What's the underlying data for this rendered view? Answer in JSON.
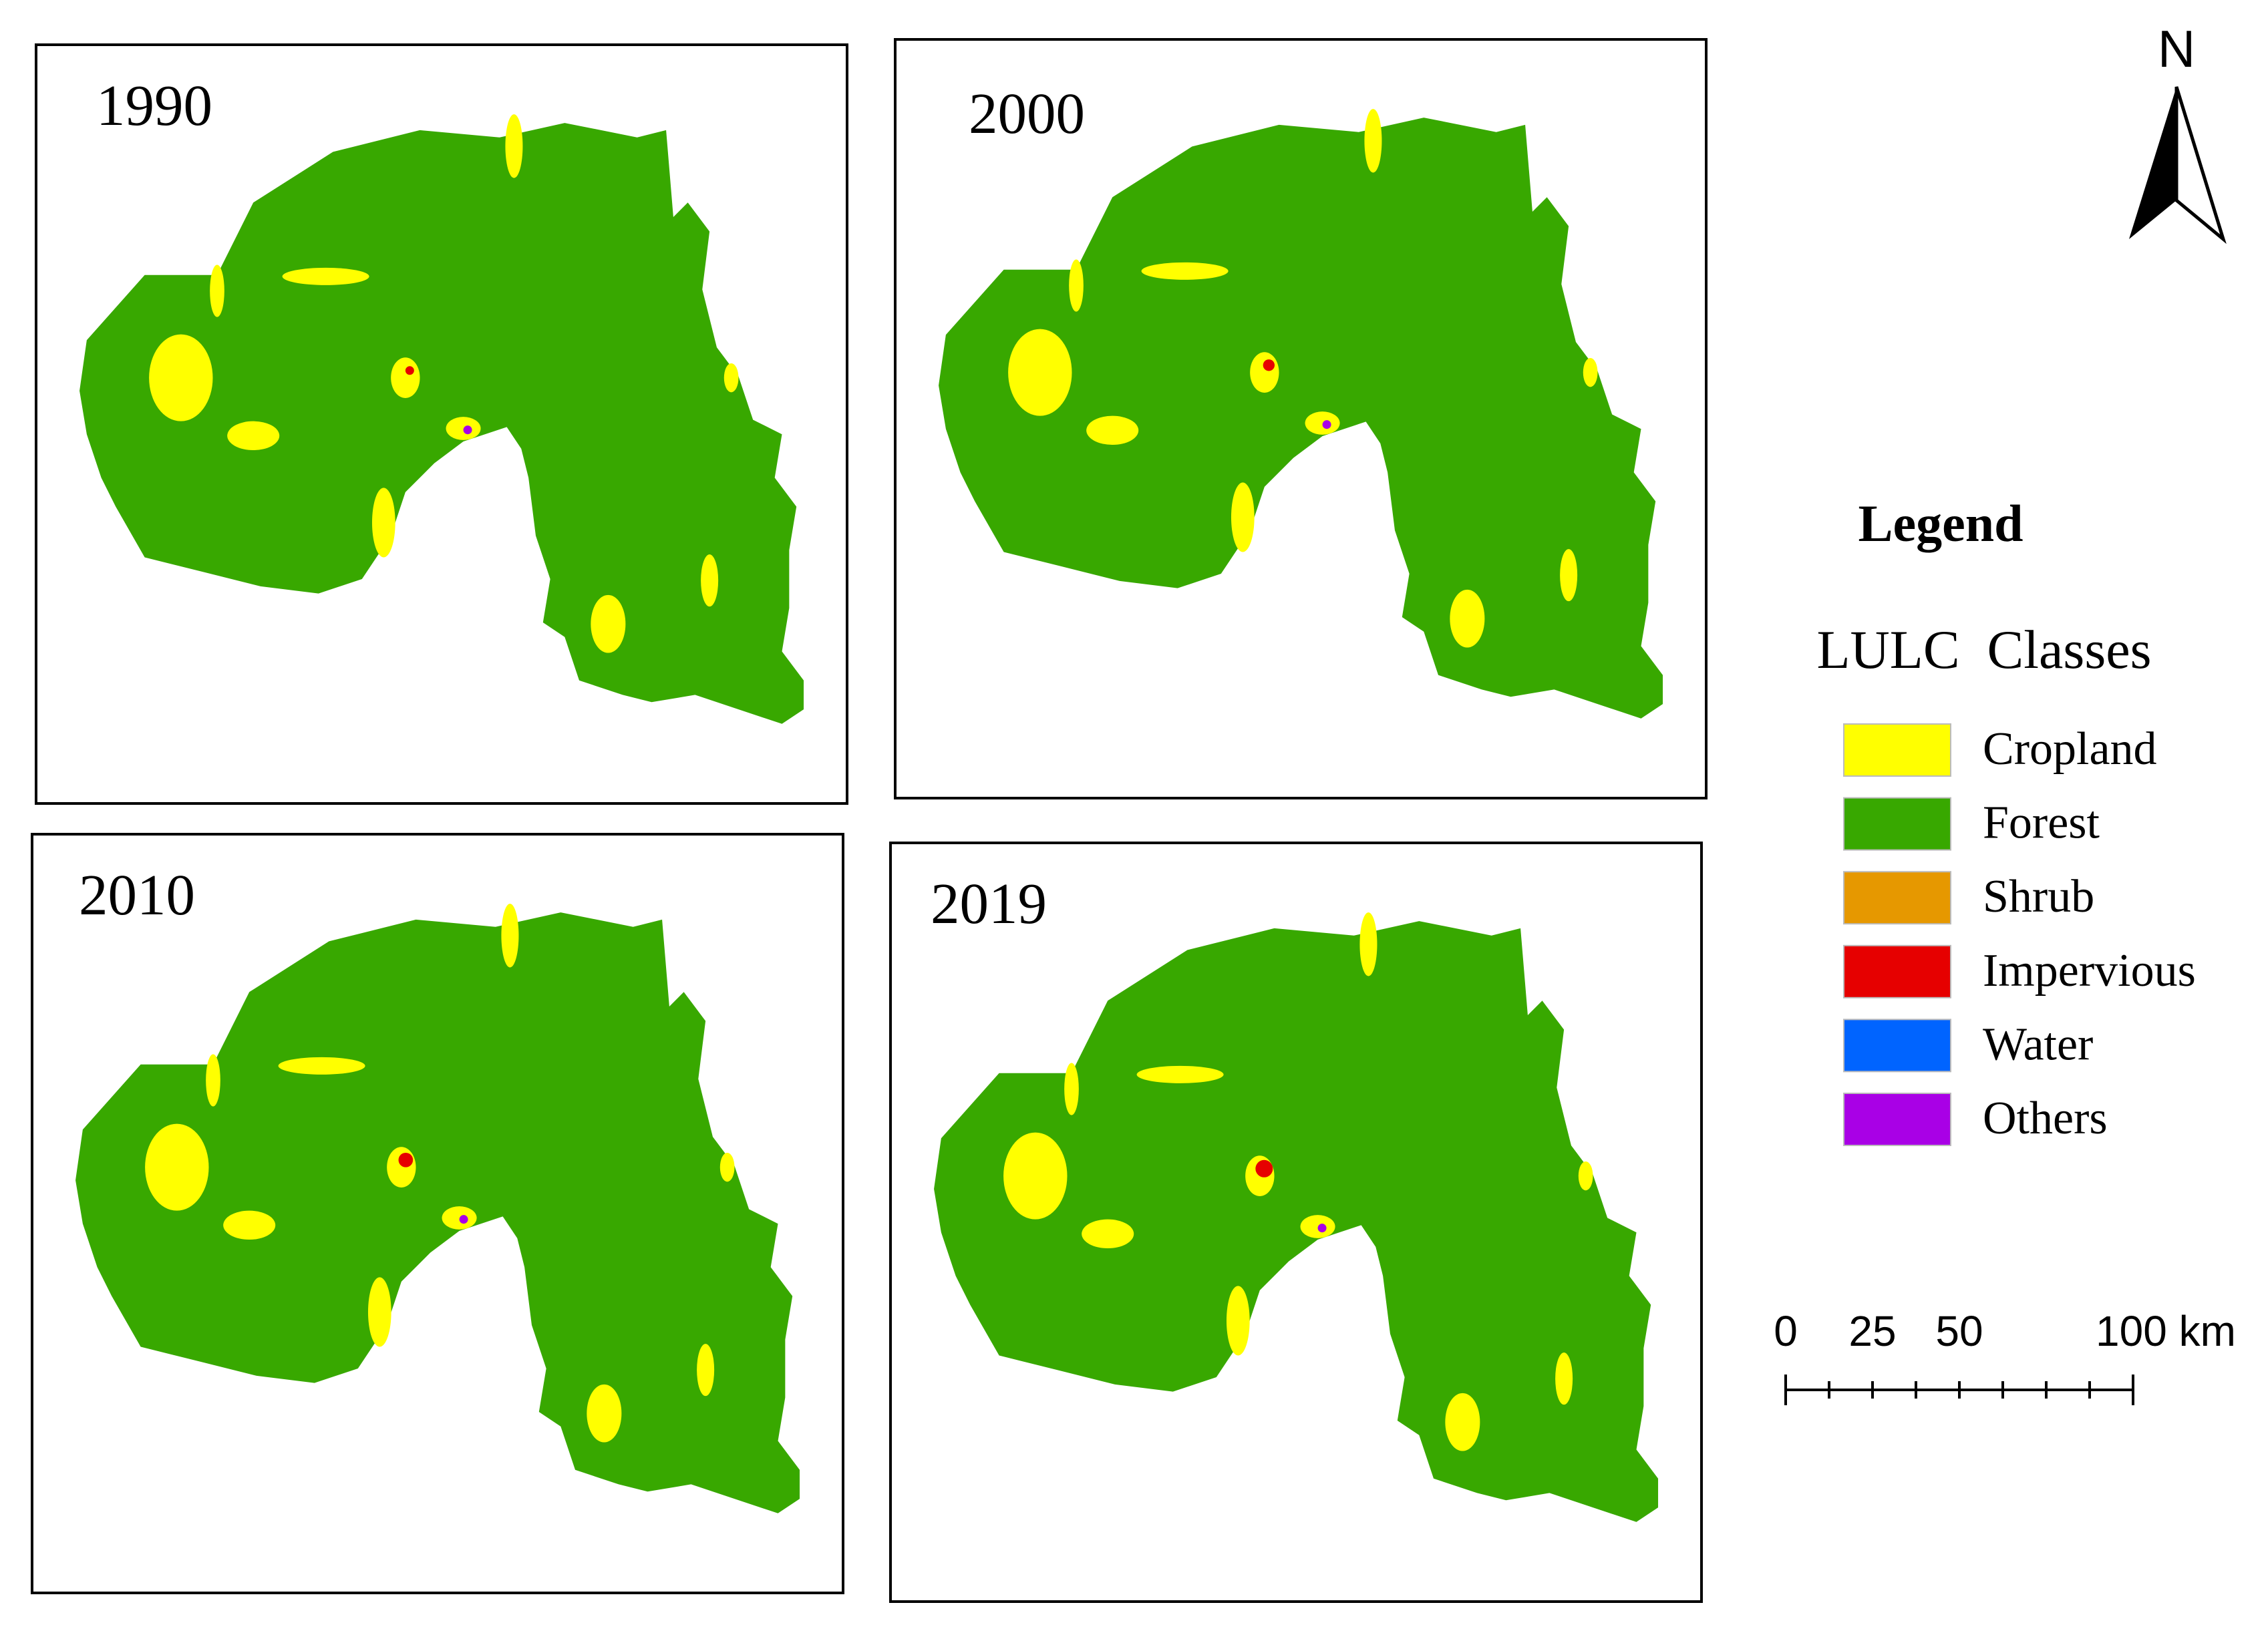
{
  "panels": [
    {
      "year": "1990"
    },
    {
      "year": "2000"
    },
    {
      "year": "2010"
    },
    {
      "year": "2019"
    }
  ],
  "north": "N",
  "legend": {
    "title": "Legend",
    "subtitle": "LULC  Classes",
    "classes": [
      {
        "label": "Cropland",
        "color": "#ffff00"
      },
      {
        "label": "Forest",
        "color": "#38a800"
      },
      {
        "label": "Shrub",
        "color": "#e69800"
      },
      {
        "label": "Impervious",
        "color": "#e60000"
      },
      {
        "label": "Water",
        "color": "#0064ff"
      },
      {
        "label": "Others",
        "color": "#a900e6"
      }
    ]
  },
  "scale_bar": {
    "labels": [
      "0",
      "25",
      "50",
      "100 km"
    ]
  }
}
